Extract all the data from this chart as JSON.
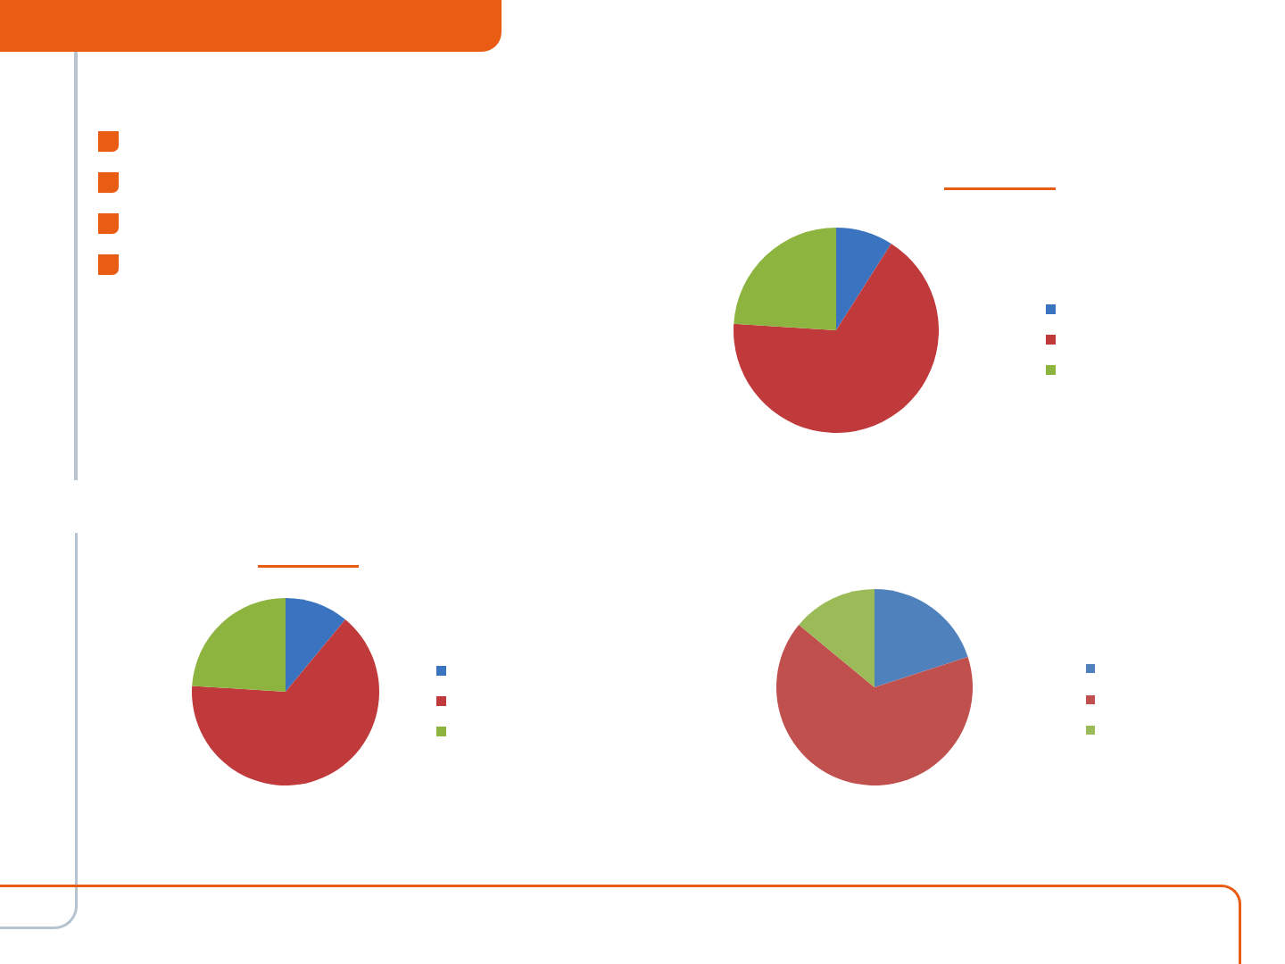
{
  "chart_data": [
    {
      "type": "pie",
      "categories": [
        null,
        null,
        null
      ],
      "values": [
        9,
        67,
        24
      ],
      "colors": [
        "#3a73c0",
        "#c0393b",
        "#8db43e"
      ]
    },
    {
      "type": "pie",
      "categories": [
        null,
        null,
        null
      ],
      "values": [
        11,
        65,
        24
      ],
      "colors": [
        "#3a73c0",
        "#c0393b",
        "#8db43e"
      ]
    },
    {
      "type": "pie",
      "categories": [
        null,
        null,
        null
      ],
      "values": [
        20,
        66,
        14
      ],
      "colors": [
        "#4f81bd",
        "#c0504d",
        "#9bbb59"
      ]
    }
  ]
}
